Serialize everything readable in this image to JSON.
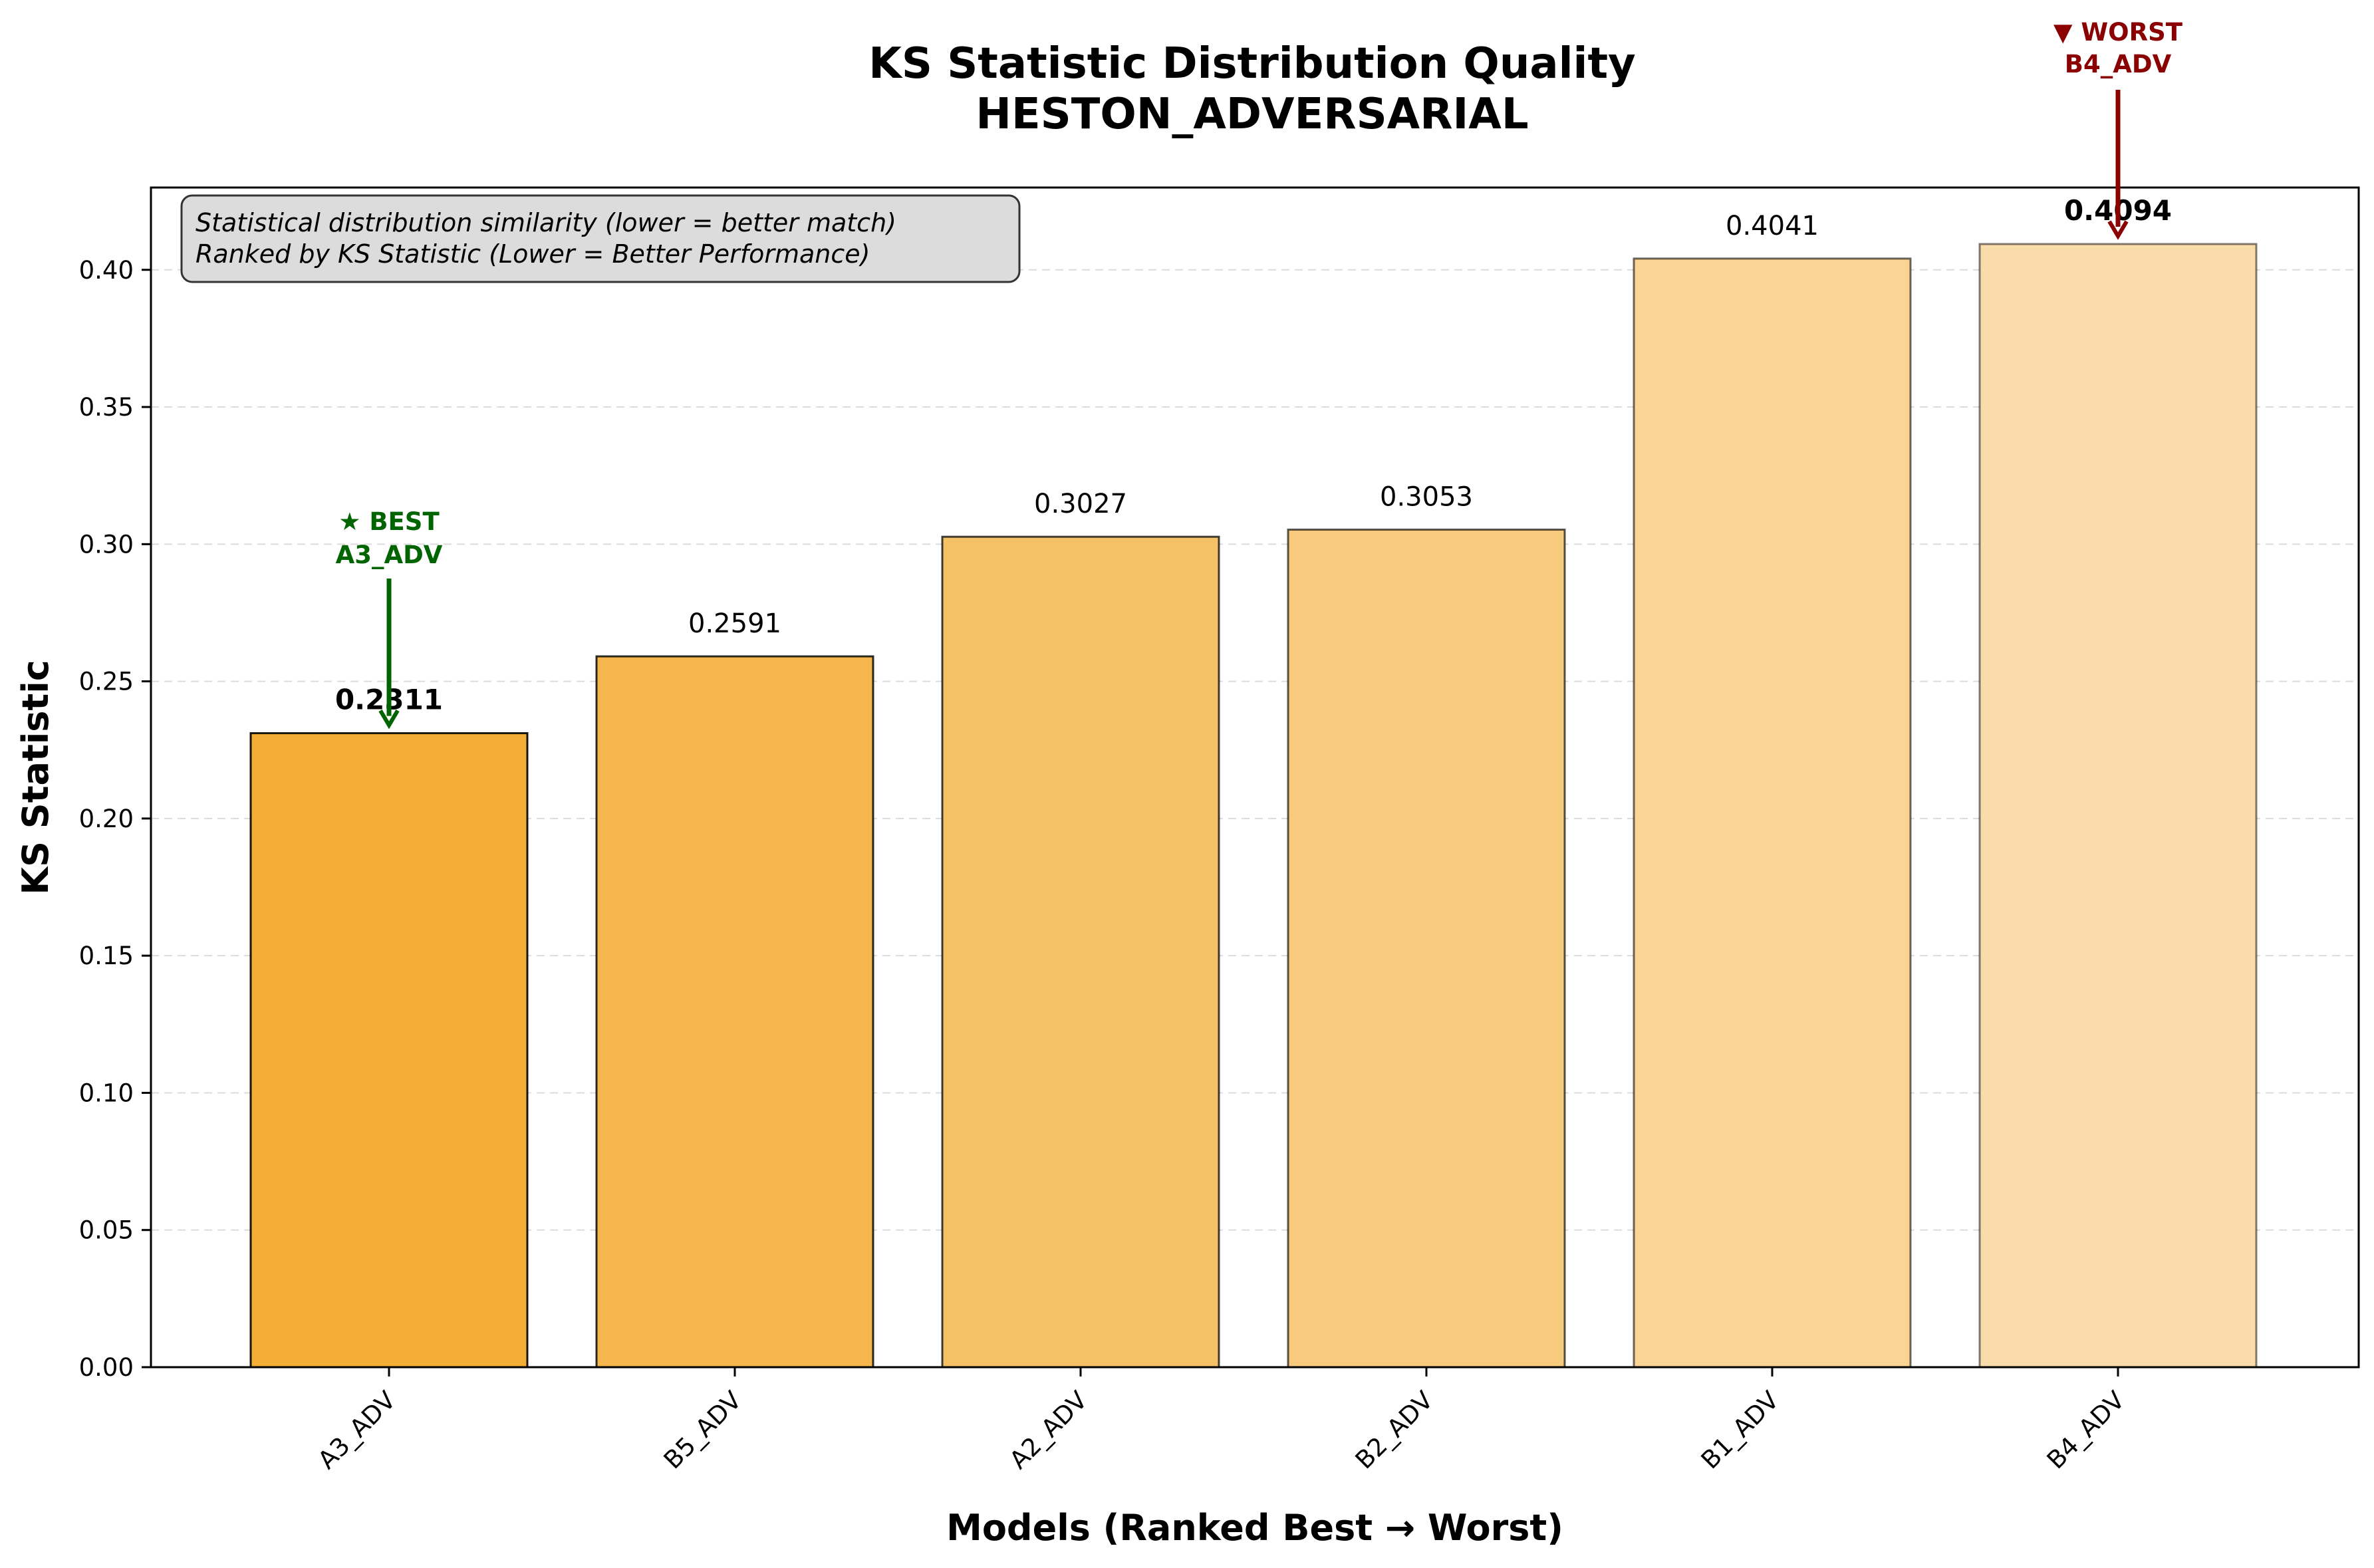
{
  "chart_data": {
    "type": "bar",
    "title": "KS Statistic Distribution Quality",
    "subtitle": "HESTON_ADVERSARIAL",
    "xlabel": "Models (Ranked Best → Worst)",
    "ylabel": "KS Statistic",
    "categories": [
      "A3_ADV",
      "B5_ADV",
      "A2_ADV",
      "B2_ADV",
      "B1_ADV",
      "B4_ADV"
    ],
    "values": [
      0.2311,
      0.2591,
      0.3027,
      0.3053,
      0.4041,
      0.4094
    ],
    "value_labels": [
      "0.2311",
      "0.2591",
      "0.3027",
      "0.3053",
      "0.4041",
      "0.4094"
    ],
    "bar_colors": [
      "#f5ae35",
      "#f5b64d",
      "#f5c166",
      "#f7ca7e",
      "#f9d495",
      "#fadcab"
    ],
    "bar_edge_color": "#000000",
    "ylim": [
      0,
      0.43
    ],
    "yticks": [
      0.0,
      0.05,
      0.1,
      0.15,
      0.2,
      0.25,
      0.3,
      0.35,
      0.4
    ],
    "ytick_labels": [
      "0.00",
      "0.05",
      "0.10",
      "0.15",
      "0.20",
      "0.25",
      "0.30",
      "0.35",
      "0.40"
    ],
    "grid": "y, dashed",
    "annotation_box": {
      "lines": [
        "Statistical distribution similarity (lower = better match)",
        "Ranked by KS Statistic (Lower = Better Performance)"
      ],
      "placement": "top-left"
    },
    "best": {
      "index": 0,
      "line1": "★ BEST",
      "line2": "A3_ADV",
      "color": "#006400"
    },
    "worst": {
      "index": 5,
      "line1": "▼ WORST",
      "line2": "B4_ADV",
      "color": "#8b0000"
    }
  }
}
